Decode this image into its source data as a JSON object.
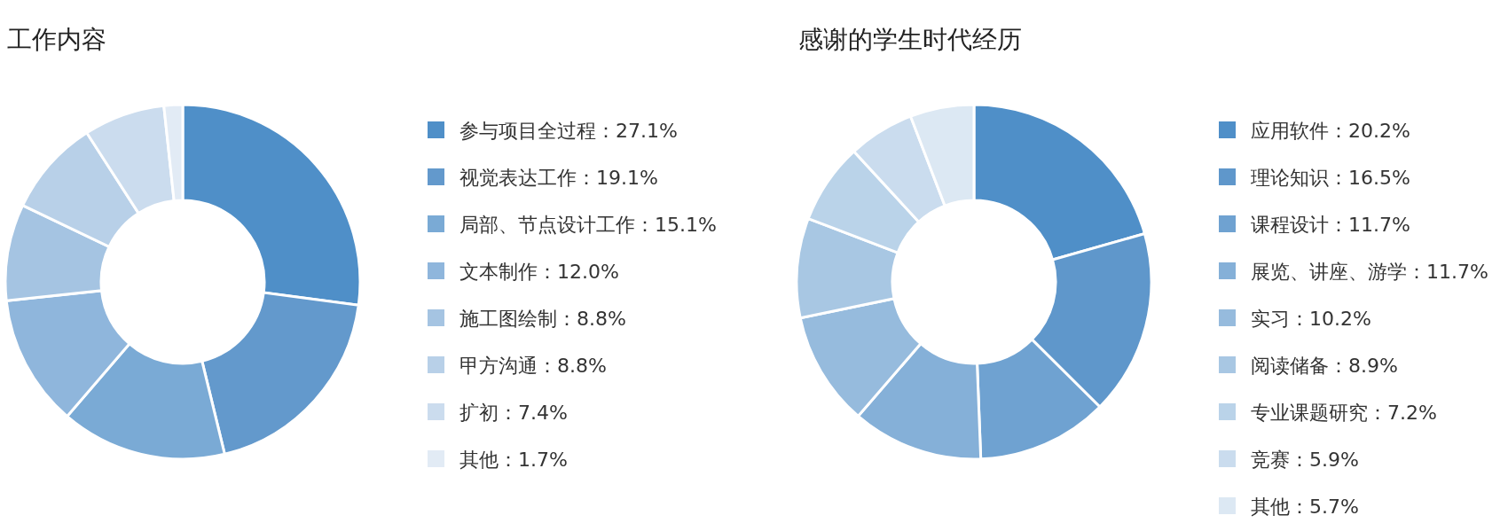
{
  "chart_data": [
    {
      "type": "donut",
      "title": "工作内容",
      "legend": "right",
      "categories": [
        "参与项目全过程",
        "视觉表达工作",
        "局部、节点设计工作",
        "文本制作",
        "施工图绘制",
        "甲方沟通",
        "扩初",
        "其他"
      ],
      "values": [
        27.1,
        19.1,
        15.1,
        12.0,
        8.8,
        8.8,
        7.4,
        1.7
      ],
      "value_labels": [
        "27.1%",
        "19.1%",
        "15.1%",
        "12.0%",
        "8.8%",
        "8.8%",
        "7.4%",
        "1.7%"
      ],
      "colors": [
        "#4f8fc8",
        "#6399cc",
        "#7aaad5",
        "#8fb6dc",
        "#a5c4e2",
        "#b8d0e8",
        "#cbdcee",
        "#e2ebf5"
      ]
    },
    {
      "type": "donut",
      "title": "感谢的学生时代经历",
      "legend": "right",
      "categories": [
        "应用软件",
        "理论知识",
        "课程设计",
        "展览、讲座、游学",
        "实习",
        "阅读储备",
        "专业课题研究",
        "竞赛",
        "其他"
      ],
      "values": [
        20.2,
        16.5,
        11.7,
        11.7,
        10.2,
        8.9,
        7.2,
        5.9,
        5.7
      ],
      "value_labels": [
        "20.2%",
        "16.5%",
        "11.7%",
        "11.7%",
        "10.2%",
        "8.9%",
        "7.2%",
        "5.9%",
        "5.7%"
      ],
      "colors": [
        "#4f8fc8",
        "#5f97cb",
        "#6fa2d1",
        "#85b0d8",
        "#96bbdd",
        "#a8c7e3",
        "#bad3e9",
        "#cadcee",
        "#dce8f3"
      ]
    }
  ]
}
